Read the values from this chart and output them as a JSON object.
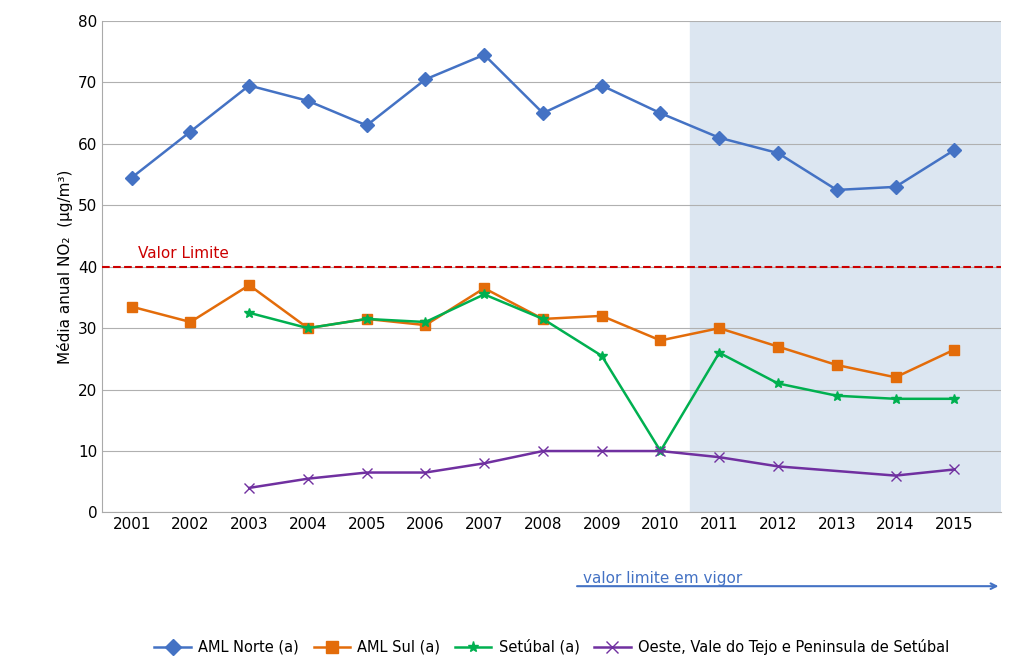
{
  "years": [
    2001,
    2002,
    2003,
    2004,
    2005,
    2006,
    2007,
    2008,
    2009,
    2010,
    2011,
    2012,
    2013,
    2014,
    2015
  ],
  "aml_norte": [
    54.5,
    62,
    69.5,
    67,
    63,
    70.5,
    74.5,
    65,
    69.5,
    65,
    61,
    58.5,
    52.5,
    53,
    59
  ],
  "aml_sul": [
    33.5,
    31,
    37,
    30,
    31.5,
    30.5,
    36.5,
    31.5,
    32,
    28,
    30,
    27,
    24,
    22,
    26.5
  ],
  "setubal": [
    null,
    null,
    32.5,
    30,
    31.5,
    31,
    35.5,
    31.5,
    25.5,
    10,
    26,
    21,
    19,
    18.5,
    18.5
  ],
  "oeste": [
    null,
    null,
    4,
    5.5,
    6.5,
    6.5,
    8,
    10,
    10,
    10,
    9,
    7.5,
    null,
    6,
    7
  ],
  "valor_limite": 40,
  "shade_start": 2010.5,
  "shade_end": 2015.8,
  "shade_color": "#dce6f1",
  "aml_norte_color": "#4472c4",
  "aml_sul_color": "#e36c0a",
  "setubal_color": "#00b050",
  "oeste_color": "#7030a0",
  "valor_limite_color": "#cc0000",
  "ylabel": "Média anual NO₂  (μg/m³)",
  "ylim": [
    0,
    80
  ],
  "yticks": [
    0,
    10,
    20,
    30,
    40,
    50,
    60,
    70,
    80
  ],
  "xlim": [
    2000.5,
    2015.8
  ],
  "legend_labels": [
    "AML Norte (a)",
    "AML Sul (a)",
    "Setúbal (a)",
    "Oeste, Vale do Tejo e Peninsula de Setúbal"
  ],
  "valor_limite_label": "Valor Limite",
  "valor_limite_em_vigor": "valor limite em vigor",
  "bg_color": "#ffffff",
  "arrow_color": "#4472c4",
  "grid_color": "#b0b0b0"
}
